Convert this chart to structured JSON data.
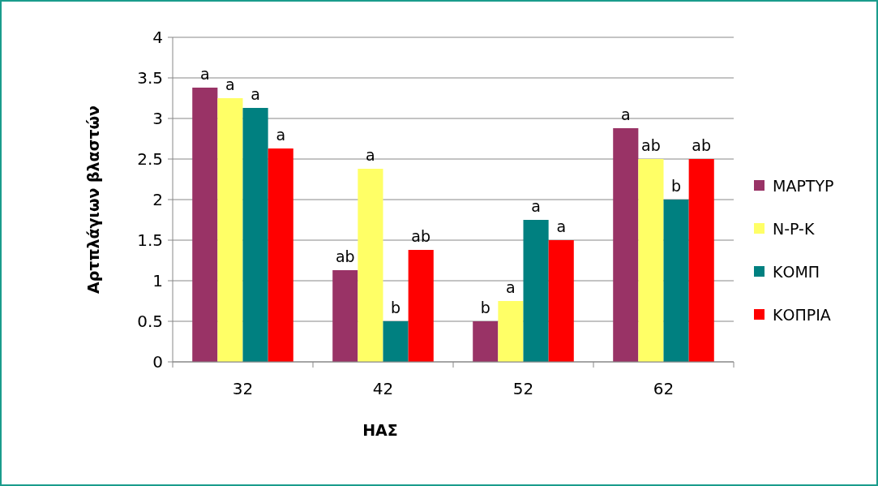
{
  "chart_data": {
    "type": "bar",
    "xlabel": "ΗΑΣ",
    "ylabel": "Αρτπλάγιων βλαστών",
    "categories": [
      "32",
      "42",
      "52",
      "62"
    ],
    "series": [
      {
        "name": "ΜΑΡΤΥΡ",
        "color": "#993366",
        "values": [
          3.38,
          1.13,
          0.5,
          2.88
        ],
        "value_labels": [
          "a",
          "ab",
          "b",
          "a"
        ]
      },
      {
        "name": "N-P-K",
        "color": "#ffff66",
        "values": [
          3.25,
          2.38,
          0.75,
          2.5
        ],
        "value_labels": [
          "a",
          "a",
          "a",
          "ab"
        ]
      },
      {
        "name": "ΚΟΜΠ",
        "color": "#008080",
        "values": [
          3.13,
          0.5,
          1.75,
          2.0
        ],
        "value_labels": [
          "a",
          "b",
          "a",
          "b"
        ]
      },
      {
        "name": "ΚΟΠΡΙΑ",
        "color": "#ff0000",
        "values": [
          2.63,
          1.38,
          1.5,
          2.5
        ],
        "value_labels": [
          "a",
          "ab",
          "a",
          "ab"
        ]
      }
    ],
    "ylim": [
      0,
      4
    ],
    "yticks": [
      0,
      0.5,
      1,
      1.5,
      2,
      2.5,
      3,
      3.5,
      4
    ],
    "grid": "y",
    "legend": "right"
  }
}
